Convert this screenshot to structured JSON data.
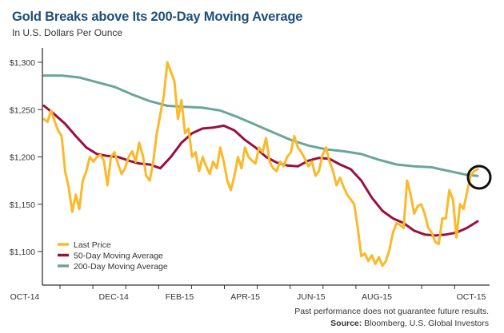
{
  "chart_data": {
    "type": "line",
    "title": "Gold Breaks above Its 200-Day Moving Average",
    "subtitle": "In U.S. Dollars Per Ounce",
    "xlabel": "",
    "ylabel": "",
    "ylim": [
      1070,
      1320
    ],
    "y_ticks": [
      1100,
      1150,
      1200,
      1250,
      1300
    ],
    "y_tick_labels": [
      "$1,100",
      "$1,150",
      "$1,200",
      "$1,250",
      "$1,300"
    ],
    "x_range": [
      0,
      12.6
    ],
    "x_tick_positions": [
      0,
      1,
      2,
      3,
      4,
      5,
      6,
      7,
      8,
      9,
      10,
      11,
      12
    ],
    "x_labels": [
      {
        "pos": 0,
        "label": "OCT-14"
      },
      {
        "pos": 2,
        "label": "DEC-14"
      },
      {
        "pos": 4,
        "label": "FEB-15"
      },
      {
        "pos": 6,
        "label": "APR-15"
      },
      {
        "pos": 8,
        "label": "JUN-15"
      },
      {
        "pos": 10,
        "label": "AUG-15"
      },
      {
        "pos": 12,
        "label": "OCT-15"
      }
    ],
    "grid": false,
    "legend_position": "bottom-left",
    "annotation": "circle highlighting last price crossing above 200-day moving average",
    "series": [
      {
        "name": "Last Price",
        "color": "#fbb92a",
        "x": [
          0,
          0.1,
          0.2,
          0.3,
          0.4,
          0.5,
          0.6,
          0.7,
          0.8,
          0.9,
          1.0,
          1.1,
          1.2,
          1.3,
          1.4,
          1.5,
          1.6,
          1.7,
          1.8,
          1.9,
          2.0,
          2.1,
          2.2,
          2.3,
          2.4,
          2.5,
          2.6,
          2.7,
          2.8,
          2.9,
          3.0,
          3.1,
          3.2,
          3.3,
          3.4,
          3.5,
          3.6,
          3.7,
          3.8,
          3.9,
          4.0,
          4.1,
          4.2,
          4.3,
          4.4,
          4.5,
          4.6,
          4.7,
          4.8,
          4.9,
          5.0,
          5.1,
          5.2,
          5.3,
          5.4,
          5.5,
          5.6,
          5.7,
          5.8,
          5.9,
          6.0,
          6.1,
          6.2,
          6.3,
          6.4,
          6.5,
          6.6,
          6.7,
          6.8,
          6.9,
          7.0,
          7.1,
          7.2,
          7.3,
          7.4,
          7.5,
          7.6,
          7.7,
          7.8,
          7.9,
          8.0,
          8.1,
          8.2,
          8.3,
          8.4,
          8.5,
          8.6,
          8.7,
          8.8,
          8.9,
          9.0,
          9.1,
          9.2,
          9.3,
          9.4,
          9.5,
          9.6,
          9.7,
          9.8,
          9.9,
          10.0,
          10.1,
          10.2,
          10.3,
          10.4,
          10.5,
          10.6,
          10.7,
          10.8,
          10.9,
          11.0,
          11.1,
          11.2,
          11.3,
          11.4,
          11.5,
          11.6,
          11.7,
          11.8,
          11.9,
          12.0,
          12.1,
          12.2,
          12.3
        ],
        "values": [
          1240,
          1237,
          1249,
          1238,
          1228,
          1222,
          1185,
          1168,
          1142,
          1160,
          1145,
          1175,
          1185,
          1200,
          1195,
          1200,
          1202,
          1196,
          1170,
          1200,
          1205,
          1193,
          1182,
          1188,
          1200,
          1206,
          1195,
          1215,
          1202,
          1180,
          1175,
          1195,
          1225,
          1245,
          1265,
          1300,
          1290,
          1280,
          1240,
          1260,
          1225,
          1230,
          1200,
          1205,
          1185,
          1200,
          1190,
          1182,
          1195,
          1188,
          1210,
          1195,
          1175,
          1165,
          1180,
          1200,
          1188,
          1210,
          1200,
          1196,
          1193,
          1210,
          1205,
          1220,
          1195,
          1188,
          1185,
          1195,
          1190,
          1200,
          1205,
          1222,
          1210,
          1205,
          1198,
          1190,
          1195,
          1180,
          1185,
          1202,
          1210,
          1195,
          1185,
          1170,
          1178,
          1168,
          1160,
          1155,
          1150,
          1125,
          1095,
          1098,
          1090,
          1096,
          1087,
          1094,
          1085,
          1090,
          1102,
          1120,
          1130,
          1128,
          1125,
          1175,
          1160,
          1140,
          1148,
          1150,
          1140,
          1125,
          1120,
          1110,
          1108,
          1135,
          1135,
          1165,
          1155,
          1115,
          1150,
          1145,
          1163,
          1180,
          1185,
          1187
        ]
      },
      {
        "name": "50-Day Moving Average",
        "color": "#9c0f3c",
        "x": [
          0,
          0.3,
          0.6,
          0.9,
          1.2,
          1.5,
          1.8,
          2.1,
          2.4,
          2.7,
          3.0,
          3.3,
          3.6,
          3.9,
          4.2,
          4.5,
          4.8,
          5.1,
          5.4,
          5.7,
          6.0,
          6.3,
          6.6,
          6.9,
          7.2,
          7.5,
          7.8,
          8.1,
          8.4,
          8.7,
          9.0,
          9.3,
          9.6,
          9.9,
          10.2,
          10.5,
          10.8,
          11.1,
          11.4,
          11.7,
          12.0,
          12.3
        ],
        "values": [
          1254,
          1245,
          1235,
          1222,
          1210,
          1203,
          1201,
          1200,
          1196,
          1193,
          1192,
          1188,
          1200,
          1215,
          1225,
          1230,
          1231,
          1233,
          1228,
          1218,
          1210,
          1200,
          1194,
          1191,
          1190,
          1196,
          1199,
          1198,
          1192,
          1187,
          1175,
          1157,
          1143,
          1135,
          1130,
          1122,
          1118,
          1117,
          1118,
          1120,
          1125,
          1132
        ]
      },
      {
        "name": "200-Day Moving Average",
        "color": "#6ba59a",
        "x": [
          0,
          0.5,
          1.0,
          1.5,
          2.0,
          2.5,
          3.0,
          3.5,
          4.0,
          4.5,
          5.0,
          5.5,
          6.0,
          6.5,
          7.0,
          7.5,
          8.0,
          8.5,
          9.0,
          9.5,
          10.0,
          10.5,
          11.0,
          11.5,
          12.0,
          12.3
        ],
        "values": [
          1286,
          1286,
          1284,
          1279,
          1274,
          1266,
          1259,
          1254,
          1253,
          1252,
          1249,
          1242,
          1234,
          1226,
          1218,
          1212,
          1208,
          1206,
          1203,
          1197,
          1192,
          1190,
          1189,
          1185,
          1181,
          1180
        ]
      }
    ]
  },
  "footer": {
    "disclaimer": "Past performance does not guarantee future results.",
    "source_label": "Source:",
    "source_text": " Bloomberg, U.S. Global Investors"
  }
}
